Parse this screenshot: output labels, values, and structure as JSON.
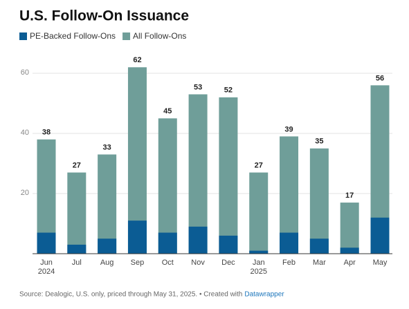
{
  "chart_data": {
    "type": "overlapped_bar",
    "title": "U.S. Follow-On Issuance",
    "categories": [
      "Jun\n2024",
      "Jul",
      "Aug",
      "Sep",
      "Oct",
      "Nov",
      "Dec",
      "Jan\n2025",
      "Feb",
      "Mar",
      "Apr",
      "May"
    ],
    "series": [
      {
        "name": "PE-Backed Follow-Ons",
        "color": "#0b5c94",
        "values": [
          7,
          3,
          5,
          11,
          7,
          9,
          6,
          1,
          7,
          5,
          2,
          12
        ]
      },
      {
        "name": "All Follow-Ons",
        "color": "#6f9e99",
        "values": [
          38,
          27,
          33,
          62,
          45,
          53,
          52,
          27,
          39,
          35,
          17,
          56
        ]
      }
    ],
    "ylim": [
      0,
      60
    ],
    "yticks": [
      20,
      40,
      60
    ],
    "grid": true,
    "source": "Source: Dealogic, U.S. only, priced through May 31, 2025. • Created with",
    "credit": "Datawrapper"
  }
}
